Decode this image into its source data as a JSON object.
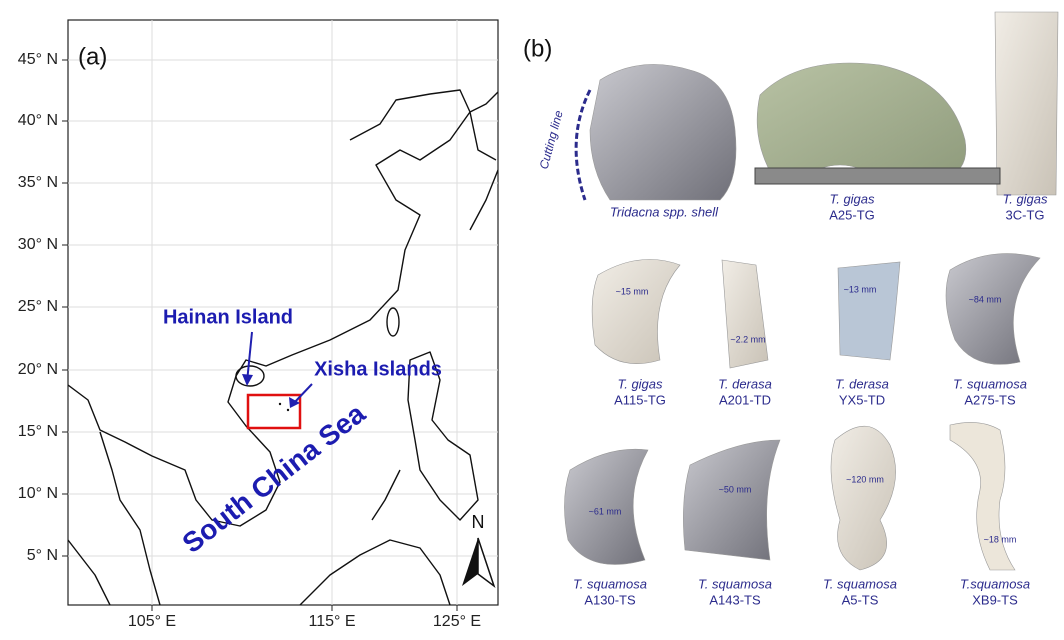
{
  "panel_a": {
    "label": "(a)",
    "latitude_labels": [
      "45° N",
      "40° N",
      "35° N",
      "30° N",
      "25° N",
      "20° N",
      "15° N",
      "10° N",
      "5° N"
    ],
    "longitude_labels": [
      "105° E",
      "115° E",
      "125° E"
    ],
    "annotations": {
      "hainan": "Hainan Island",
      "xisha": "Xisha Islands",
      "sea": "South China Sea",
      "north": "N"
    }
  },
  "panel_b": {
    "label": "(b)",
    "cutting_line": "Cutting line",
    "specimens": [
      {
        "species": "Tridacna spp. shell"
      },
      {
        "species": "T. gigas",
        "id": "A25-TG"
      },
      {
        "species": "T. gigas",
        "id": "3C-TG"
      },
      {
        "species": "T. gigas",
        "id": "A115-TG",
        "scale": "~15 mm"
      },
      {
        "species": "T. derasa",
        "id": "A201-TD",
        "scale": "~2.2 mm"
      },
      {
        "species": "T. derasa",
        "id": "YX5-TD",
        "scale": "~13 mm"
      },
      {
        "species": "T. squamosa",
        "id": "A275-TS",
        "scale": "~84 mm"
      },
      {
        "species": "T. squamosa",
        "id": "A130-TS",
        "scale": "~61 mm"
      },
      {
        "species": "T. squamosa",
        "id": "A143-TS",
        "scale": "~50 mm"
      },
      {
        "species": "T. squamosa",
        "id": "A5-TS",
        "scale": "~120 mm"
      },
      {
        "species": "T.squamosa",
        "id": "XB9-TS",
        "scale": "~18 mm"
      }
    ]
  }
}
